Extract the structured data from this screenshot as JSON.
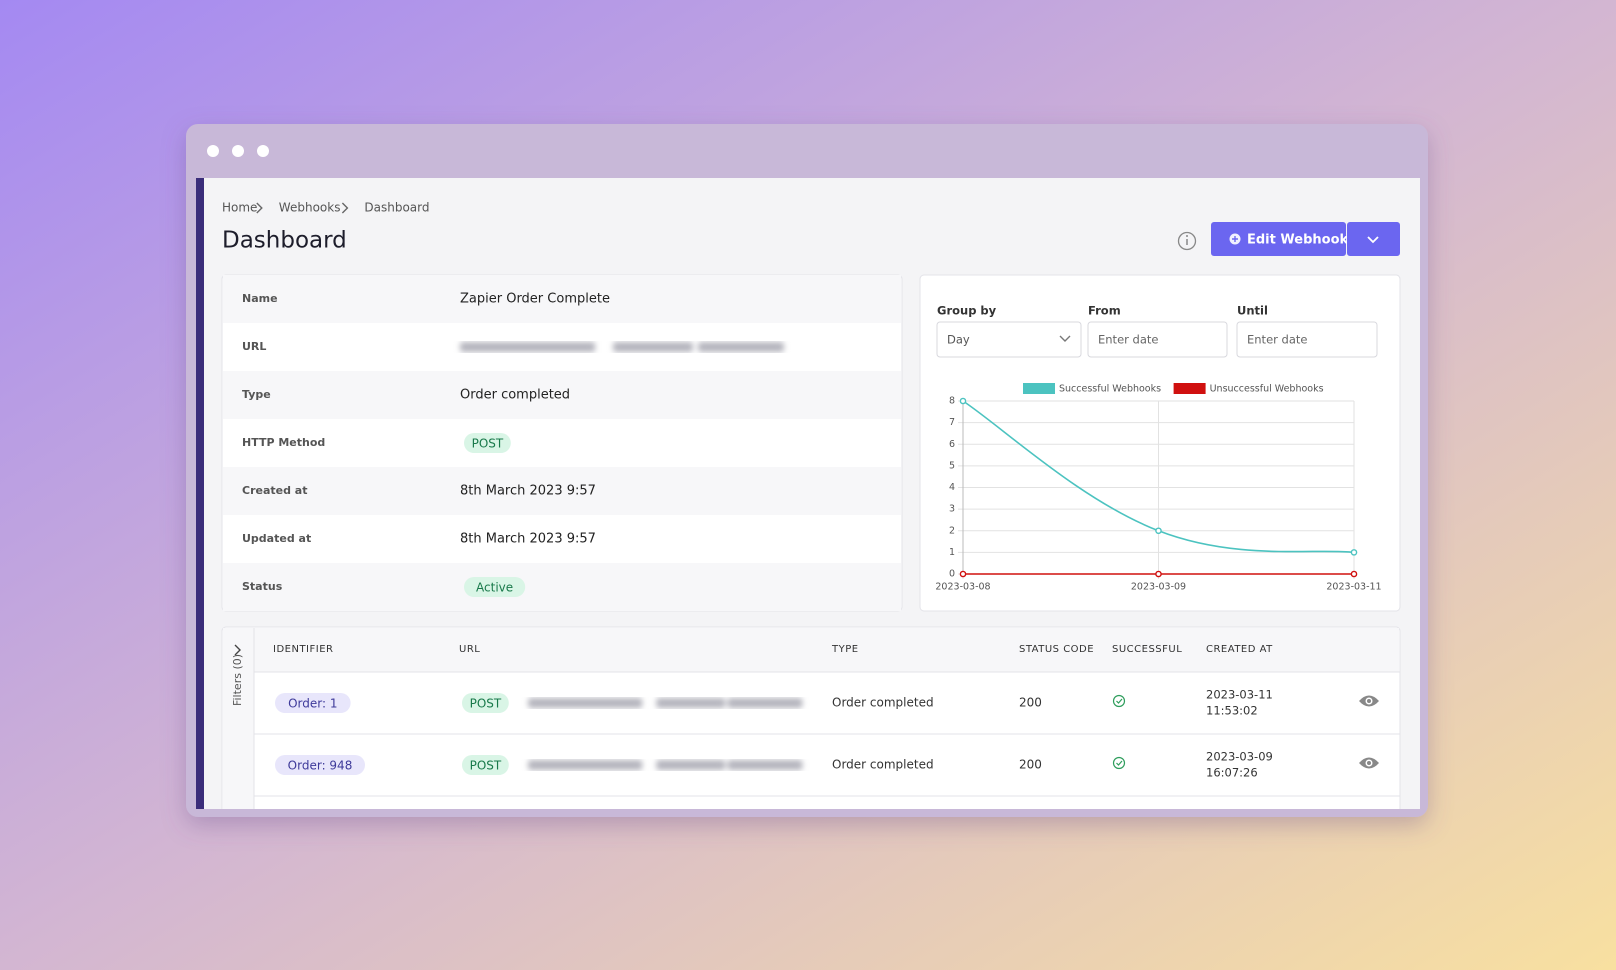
{
  "breadcrumb": [
    "Home",
    "Webhooks",
    "Dashboard"
  ],
  "title": "Dashboard",
  "edit_button": "Edit Webhook",
  "details": [
    {
      "label": "Name",
      "value": "Zapier Order Complete"
    },
    {
      "label": "URL"
    },
    {
      "label": "Type",
      "value": "Order completed"
    },
    {
      "label": "HTTP Method",
      "badge": "POST"
    },
    {
      "label": "Created at",
      "value": "8th March 2023 9:57"
    },
    {
      "label": "Updated at",
      "value": "8th March 2023 9:57"
    },
    {
      "label": "Status",
      "badge": "Active"
    }
  ],
  "filters": [
    {
      "label": "Group by",
      "value": "Day"
    },
    {
      "label": "From",
      "placeholder": "Enter date"
    },
    {
      "label": "Until",
      "placeholder": "Enter date"
    }
  ],
  "chart": {
    "type": "line",
    "categories": [
      "2023-03-08",
      "2023-03-09",
      "2023-03-11"
    ],
    "series": [
      {
        "name": "Successful Webhooks",
        "color": "#4cc3c0",
        "values": [
          8,
          2,
          1
        ]
      },
      {
        "name": "Unsuccessful Webhooks",
        "color": "#d0100f",
        "values": [
          0,
          0,
          0
        ]
      }
    ],
    "ylim": [
      0,
      8
    ],
    "yticks": [
      0,
      1,
      2,
      3,
      4,
      5,
      6,
      7,
      8
    ],
    "grid": true
  },
  "table": {
    "filters_label": "Filters (0)",
    "columns": [
      "IDENTIFIER",
      "URL",
      "TYPE",
      "STATUS CODE",
      "SUCCESSFUL",
      "CREATED AT"
    ],
    "rows": [
      {
        "identifier": "Order: 1",
        "method": "POST",
        "type": "Order completed",
        "status_code": 200,
        "created_date": "2023-03-11",
        "created_time": "11:53:02"
      },
      {
        "identifier": "Order: 948",
        "method": "POST",
        "type": "Order completed",
        "status_code": 200,
        "created_date": "2023-03-09",
        "created_time": "16:07:26"
      }
    ]
  }
}
